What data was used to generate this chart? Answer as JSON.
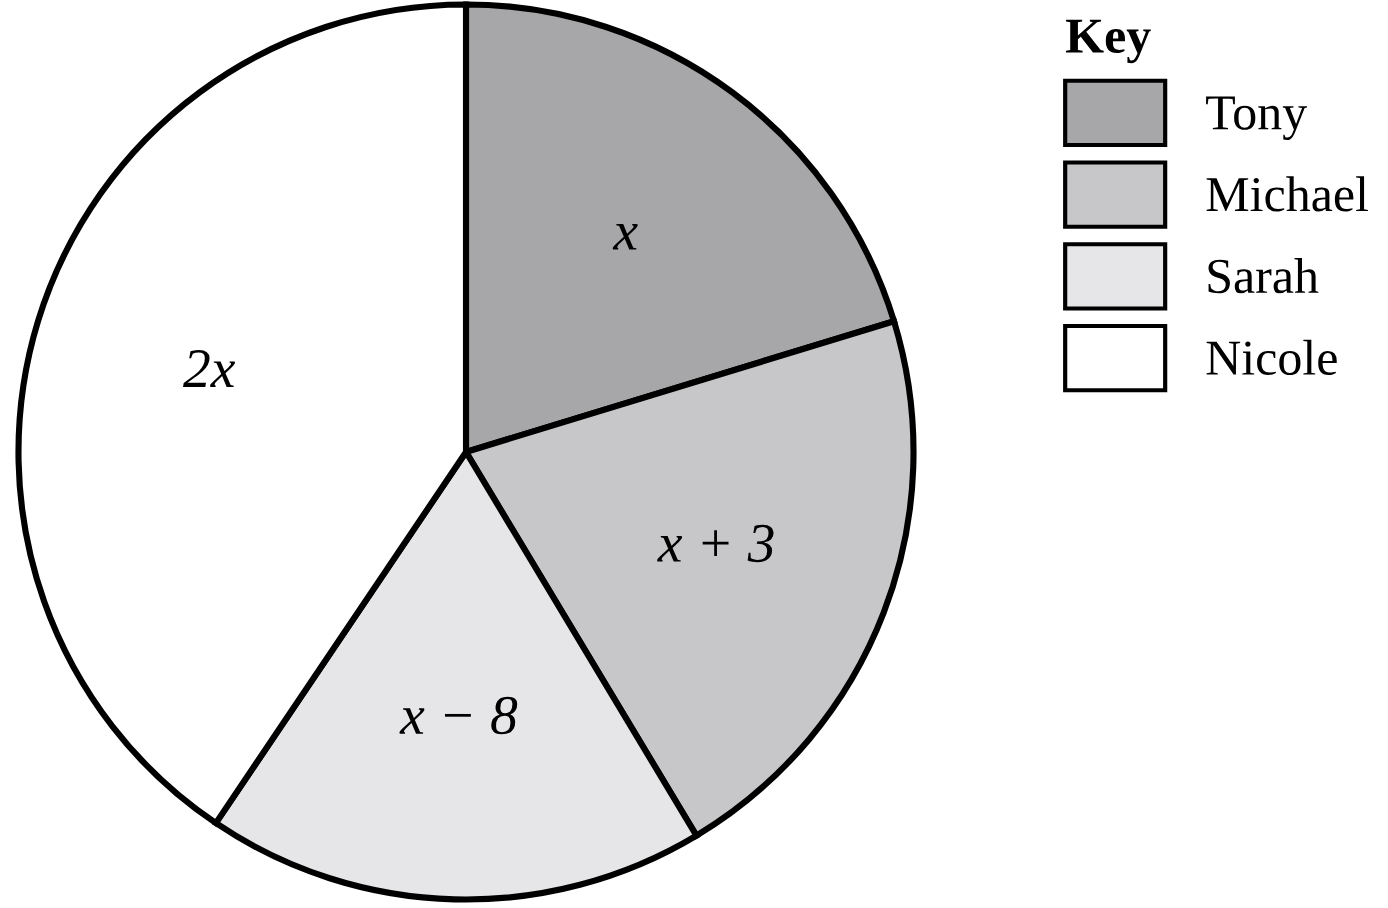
{
  "chart_data": {
    "type": "pie",
    "legend_title": "Key",
    "legend": "top right",
    "categories": [
      "Tony",
      "Michael",
      "Sarah",
      "Nicole"
    ],
    "values": [
      20.28,
      21.11,
      18.05,
      40.56
    ],
    "colors": [
      "#a7a7a9",
      "#c7c7c9",
      "#e6e6e8",
      "#ffffff"
    ],
    "annotations": [
      {
        "text": "x",
        "x": "Tony"
      },
      {
        "text": "x + 3",
        "x": "Michael"
      },
      {
        "text": "x − 8",
        "x": "Sarah"
      },
      {
        "text": "2x",
        "x": "Nicole"
      }
    ]
  }
}
